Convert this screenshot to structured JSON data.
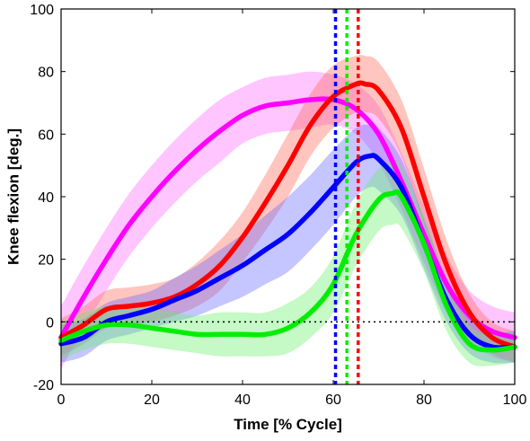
{
  "chart_data": {
    "type": "line",
    "title": "",
    "xlabel": "Time [% Cycle]",
    "ylabel": "Knee flexion [deg.]",
    "xlim": [
      0,
      100
    ],
    "ylim": [
      -20,
      100
    ],
    "xticks": [
      0,
      20,
      40,
      60,
      80,
      100
    ],
    "yticks": [
      -20,
      0,
      20,
      40,
      60,
      80,
      100
    ],
    "grid": false,
    "legend": "none",
    "series": [
      {
        "color": "#ff00ff",
        "band_color": "#ff66ff",
        "x": [
          0,
          5,
          10,
          15,
          20,
          25,
          30,
          35,
          40,
          45,
          50,
          55,
          60,
          65,
          70,
          75,
          80,
          85,
          90,
          95,
          100
        ],
        "y": [
          -5,
          8,
          20,
          31,
          40,
          48,
          55,
          61,
          66,
          69,
          70,
          71,
          71,
          68,
          60,
          45,
          28,
          12,
          2,
          -3,
          -5
        ],
        "band_half_width": [
          10,
          10,
          10,
          10,
          10,
          10,
          10,
          10,
          9,
          9,
          9,
          9,
          8,
          8,
          9,
          9,
          9,
          9,
          8,
          8,
          8
        ]
      },
      {
        "color": "#ff0000",
        "band_color": "#ff6655",
        "x": [
          0,
          5,
          10,
          15,
          20,
          25,
          30,
          35,
          40,
          45,
          50,
          55,
          60,
          65,
          67,
          70,
          75,
          80,
          85,
          90,
          95,
          100
        ],
        "y": [
          -5,
          -1,
          4,
          5,
          6,
          8,
          12,
          18,
          27,
          38,
          50,
          63,
          72,
          76,
          76,
          74,
          62,
          40,
          18,
          3,
          -5,
          -8
        ],
        "band_half_width": [
          6,
          6,
          6,
          6,
          6,
          6,
          7,
          8,
          8,
          9,
          10,
          10,
          10,
          9,
          9,
          9,
          9,
          9,
          8,
          6,
          5,
          5
        ]
      },
      {
        "color": "#0000ff",
        "band_color": "#6666ff",
        "x": [
          0,
          5,
          10,
          15,
          20,
          25,
          30,
          35,
          40,
          45,
          50,
          55,
          60,
          65,
          68,
          70,
          75,
          80,
          85,
          90,
          95,
          100
        ],
        "y": [
          -7,
          -5,
          0,
          2,
          4,
          7,
          10,
          14,
          18,
          23,
          28,
          35,
          43,
          51,
          53,
          52,
          43,
          25,
          7,
          -4,
          -8,
          -8
        ],
        "band_half_width": [
          6,
          6,
          6,
          6,
          6,
          7,
          8,
          9,
          10,
          11,
          12,
          12,
          12,
          11,
          10,
          10,
          9,
          8,
          7,
          6,
          5,
          5
        ]
      },
      {
        "color": "#00ee00",
        "band_color": "#66ee66",
        "x": [
          0,
          5,
          10,
          15,
          20,
          25,
          30,
          35,
          40,
          45,
          50,
          55,
          60,
          65,
          70,
          73,
          75,
          80,
          85,
          90,
          95,
          100
        ],
        "y": [
          -6,
          -3,
          -1,
          -1,
          -2,
          -3,
          -4,
          -4,
          -4,
          -4,
          -2,
          3,
          12,
          28,
          39,
          41,
          40,
          25,
          5,
          -7,
          -9,
          -8
        ],
        "band_half_width": [
          6,
          6,
          6,
          6,
          6,
          6,
          6,
          7,
          7,
          7,
          8,
          8,
          9,
          10,
          10,
          10,
          10,
          9,
          8,
          6,
          5,
          5
        ]
      }
    ],
    "reference_lines": [
      {
        "orientation": "horizontal",
        "y": 0,
        "color": "#000000",
        "style": "dotted"
      },
      {
        "orientation": "vertical",
        "x": 60.5,
        "color": "#0000ff",
        "style": "dashed"
      },
      {
        "orientation": "vertical",
        "x": 63.0,
        "color": "#00ee00",
        "style": "dashed"
      },
      {
        "orientation": "vertical",
        "x": 65.5,
        "color": "#ff0000",
        "style": "dashed"
      }
    ]
  }
}
